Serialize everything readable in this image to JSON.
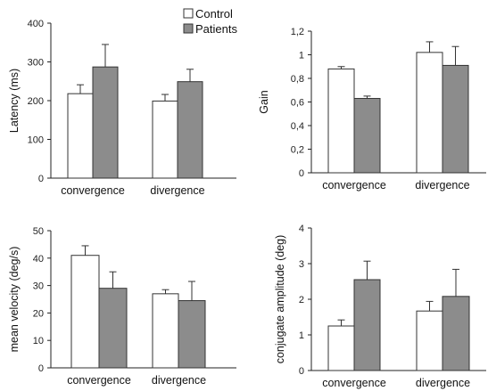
{
  "colors": {
    "control": "#ffffff",
    "patients": "#8c8c8c",
    "axis": "#222222",
    "outline": "#333333"
  },
  "legend": {
    "entries": [
      "Control",
      "Patients"
    ],
    "placement": "top-center"
  },
  "chart_data": [
    {
      "type": "bar",
      "categories": [
        "convergence",
        "divergence"
      ],
      "ylabel": "Latency (ms)",
      "ylim": [
        0,
        400
      ],
      "yticks": [
        "0",
        "100",
        "200",
        "300",
        "400"
      ],
      "series": [
        {
          "name": "Control",
          "values": [
            218,
            199
          ],
          "errors": [
            23,
            17
          ]
        },
        {
          "name": "Patients",
          "values": [
            287,
            249
          ],
          "errors": [
            58,
            32
          ]
        }
      ]
    },
    {
      "type": "bar",
      "categories": [
        "convergence",
        "divergence"
      ],
      "ylabel": "Gain",
      "ylim": [
        0,
        1.2
      ],
      "yticks": [
        "0",
        "0,2",
        "0,4",
        "0,6",
        "0,8",
        "1",
        "1,2"
      ],
      "series": [
        {
          "name": "Control",
          "values": [
            0.88,
            1.02
          ],
          "errors": [
            0.02,
            0.09
          ]
        },
        {
          "name": "Patients",
          "values": [
            0.63,
            0.91
          ],
          "errors": [
            0.02,
            0.16
          ]
        }
      ]
    },
    {
      "type": "bar",
      "categories": [
        "convergence",
        "divergence"
      ],
      "ylabel": "mean velocity (deg/s)",
      "ylim": [
        0,
        50
      ],
      "yticks": [
        "0",
        "10",
        "20",
        "30",
        "40",
        "50"
      ],
      "series": [
        {
          "name": "Control",
          "values": [
            41,
            27
          ],
          "errors": [
            3.5,
            1.5
          ]
        },
        {
          "name": "Patients",
          "values": [
            29,
            24.5
          ],
          "errors": [
            6,
            7
          ]
        }
      ]
    },
    {
      "type": "bar",
      "categories": [
        "convergence",
        "divergence"
      ],
      "ylabel": "conjugate amplitude (deg)",
      "ylim": [
        0,
        4
      ],
      "yticks": [
        "0",
        "1",
        "2",
        "3",
        "4"
      ],
      "series": [
        {
          "name": "Control",
          "values": [
            1.25,
            1.67
          ],
          "errors": [
            0.17,
            0.27
          ]
        },
        {
          "name": "Patients",
          "values": [
            2.55,
            2.08
          ],
          "errors": [
            0.52,
            0.76
          ]
        }
      ]
    }
  ]
}
